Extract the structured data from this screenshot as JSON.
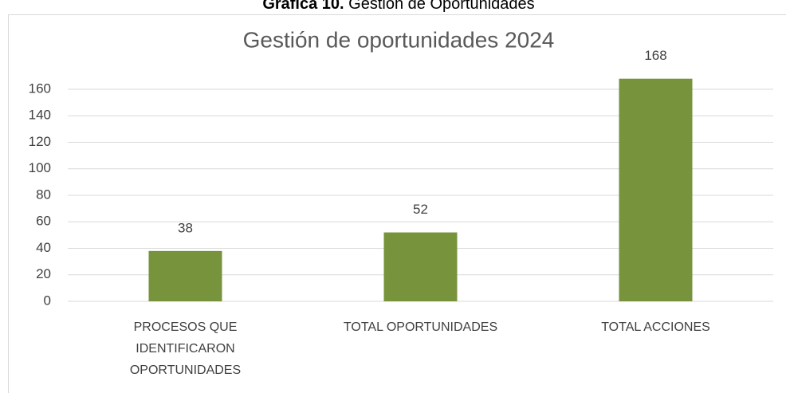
{
  "caption": {
    "label": "Gráfica 10.",
    "text": "Gestión de Oportunidades"
  },
  "chart_data": {
    "type": "bar",
    "title": "Gestión de oportunidades 2024",
    "categories": [
      "PROCESOS QUE IDENTIFICARON OPORTUNIDADES",
      "TOTAL OPORTUNIDADES",
      "TOTAL ACCIONES"
    ],
    "values": [
      38,
      52,
      168
    ],
    "color": "#77933c",
    "ylim": [
      0,
      160
    ],
    "yticks": [
      0,
      20,
      40,
      60,
      80,
      100,
      120,
      140,
      160
    ],
    "grid": true
  }
}
